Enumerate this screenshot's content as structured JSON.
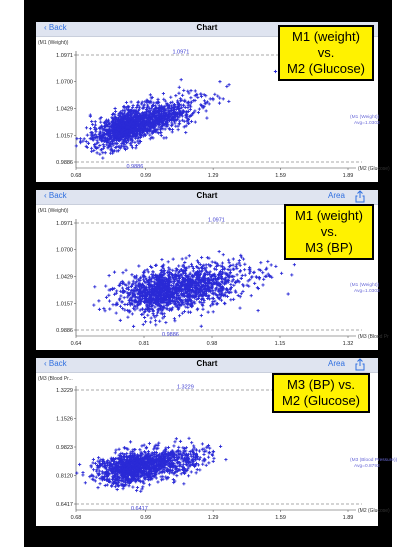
{
  "screens": [
    {
      "back_label": "Back",
      "title": "Chart",
      "area_label": "",
      "share_icon": false,
      "callout_lines": [
        "M1 (weight) vs.",
        "M2 (Glucose)"
      ],
      "chart_data": {
        "type": "scatter",
        "y_axis_title": "(M1 (Weight))",
        "x_axis_title": "(M2 (Glucose)",
        "x_ticks": [
          "0.68",
          "0.99",
          "1.29",
          "1.59",
          "1.89"
        ],
        "y_ticks": [
          "1.0971",
          "1.0700",
          "1.0429",
          "1.0157",
          "0.9886"
        ],
        "xlim": [
          0.68,
          1.89
        ],
        "ylim": [
          0.9886,
          1.0971
        ],
        "max_label": "1.0971",
        "min_label": "0.9886",
        "avg_name": "(M1 (Weight))",
        "avg_text": "Avg=1.0303",
        "avg_value": 1.0303,
        "cluster": {
          "center_x": 0.94,
          "center_y": 1.0262,
          "spread_x": 0.085,
          "spread_y": 0.0105,
          "correlation": 0.55,
          "count": 1700,
          "seed": 11
        },
        "color": "#2a2ad6"
      }
    },
    {
      "back_label": "Back",
      "title": "Chart",
      "area_label": "Area",
      "share_icon": true,
      "callout_lines": [
        "M1 (weight) vs.",
        "M3 (BP)"
      ],
      "chart_data": {
        "type": "scatter",
        "y_axis_title": "(M1 (Weight))",
        "x_axis_title": "(M3 (Blood Pr",
        "x_ticks": [
          "0.64",
          "0.81",
          "0.98",
          "1.15",
          "1.32"
        ],
        "y_ticks": [
          "1.0971",
          "1.0700",
          "1.0429",
          "1.0157",
          "0.9886"
        ],
        "xlim": [
          0.64,
          1.32
        ],
        "ylim": [
          0.9886,
          1.0971
        ],
        "max_label": "1.0971",
        "min_label": "0.9886",
        "avg_name": "(M1 (Weight))",
        "avg_text": "Avg=1.0303",
        "avg_value": 1.0303,
        "cluster": {
          "center_x": 0.875,
          "center_y": 1.0295,
          "spread_x": 0.06,
          "spread_y": 0.0115,
          "correlation": 0.3,
          "count": 1700,
          "seed": 23
        },
        "color": "#2a2ad6"
      }
    },
    {
      "back_label": "Back",
      "title": "Chart",
      "area_label": "Area",
      "share_icon": true,
      "callout_lines": [
        "M3 (BP) vs.",
        "M2 (Glucose)"
      ],
      "chart_data": {
        "type": "scatter",
        "y_axis_title": "(M3 (Blood Pr...",
        "x_axis_title": "(M2 (Glucose)",
        "x_ticks": [
          "0.68",
          "0.99",
          "1.29",
          "1.59",
          "1.89"
        ],
        "y_ticks": [
          "1.3229",
          "1.1526",
          "0.9823",
          "0.8120",
          "0.6417"
        ],
        "xlim": [
          0.68,
          1.89
        ],
        "ylim": [
          0.6417,
          1.3229
        ],
        "max_label": "1.3229",
        "min_label": "0.6417",
        "avg_name": "(M3 (Blood Pressure))",
        "avg_text": "Avg=0.8793",
        "avg_value": 0.8793,
        "cluster": {
          "center_x": 0.96,
          "center_y": 0.865,
          "spread_x": 0.085,
          "spread_y": 0.05,
          "correlation": 0.35,
          "count": 1500,
          "seed": 37
        },
        "color": "#2a2ad6"
      }
    }
  ]
}
